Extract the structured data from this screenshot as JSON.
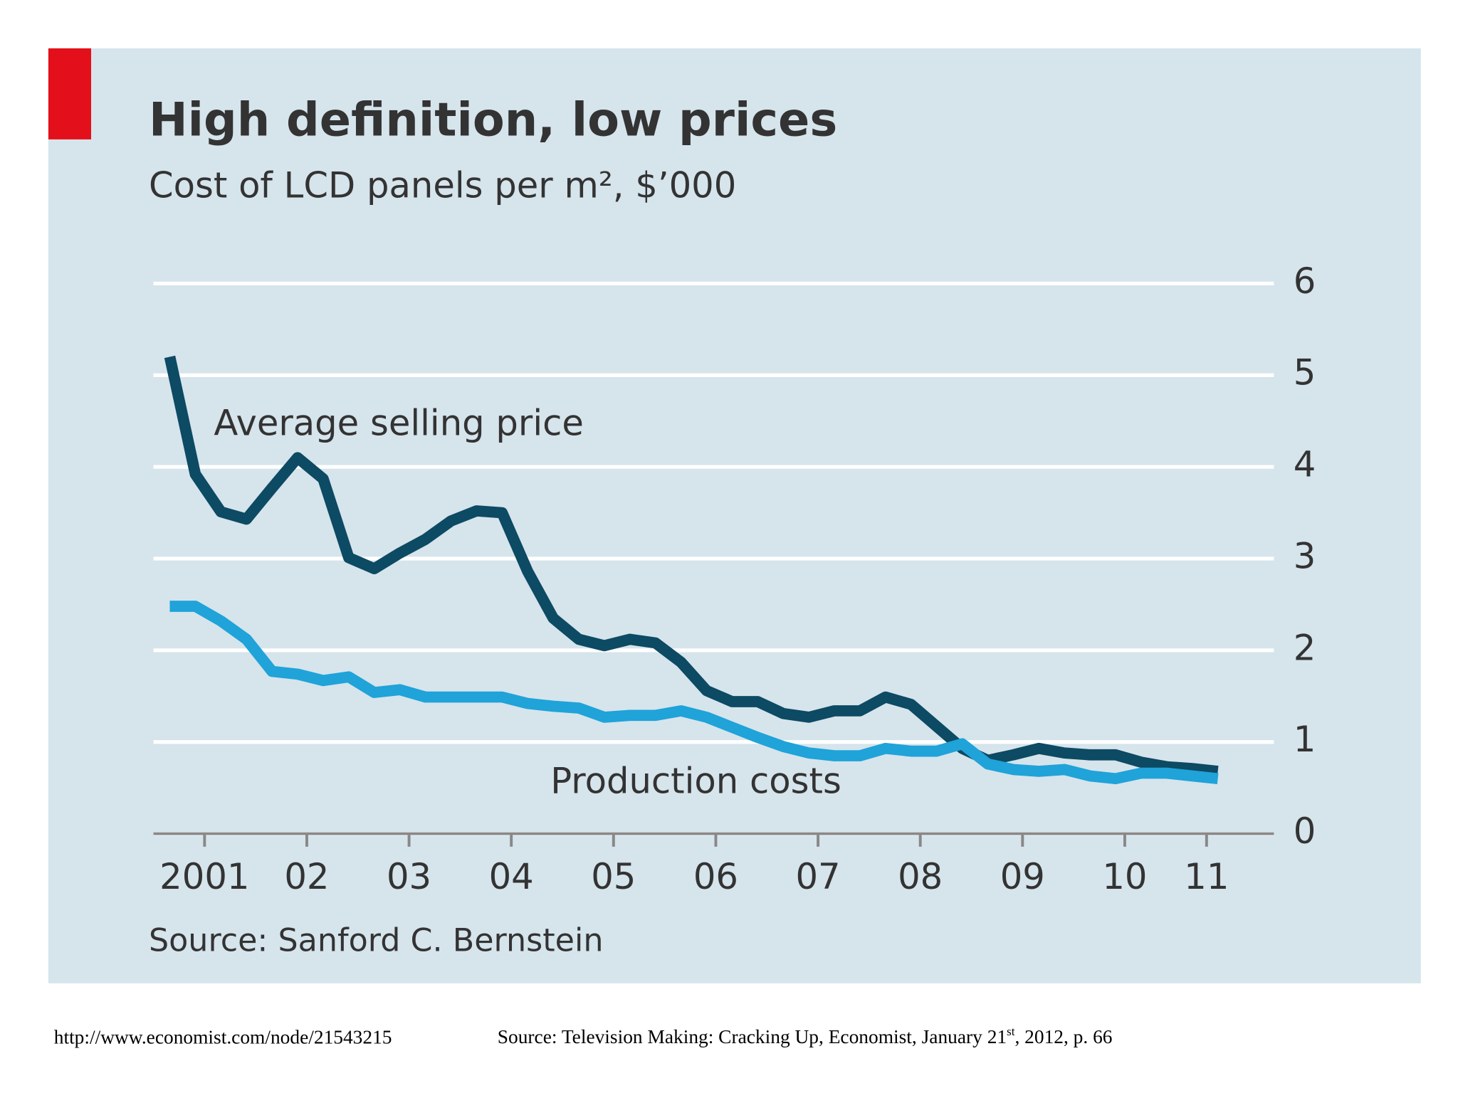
{
  "chart_data": {
    "type": "line",
    "title": "High definition, low prices",
    "subtitle": "Cost of LCD panels per m², $’000",
    "source": "Source: Sanford C. Bernstein",
    "annotations": [
      "Average selling price",
      "Production costs"
    ],
    "x": [
      2001.16,
      2001.41,
      2001.66,
      2001.91,
      2002.16,
      2002.41,
      2002.66,
      2002.91,
      2003.16,
      2003.41,
      2003.66,
      2003.91,
      2004.16,
      2004.41,
      2004.66,
      2004.91,
      2005.16,
      2005.41,
      2005.66,
      2005.91,
      2006.16,
      2006.41,
      2006.66,
      2006.91,
      2007.16,
      2007.41,
      2007.66,
      2007.91,
      2008.16,
      2008.41,
      2008.66,
      2008.91,
      2009.16,
      2009.41,
      2009.66,
      2009.91,
      2010.16,
      2010.41,
      2010.66,
      2010.91,
      2011.16,
      2011.41
    ],
    "series": [
      {
        "color": "#0d4a63",
        "values": [
          5.2,
          3.92,
          3.51,
          3.43,
          3.77,
          4.1,
          3.87,
          3.01,
          2.89,
          3.06,
          3.21,
          3.41,
          3.52,
          3.5,
          2.86,
          2.35,
          2.12,
          2.05,
          2.12,
          2.08,
          1.87,
          1.56,
          1.44,
          1.44,
          1.31,
          1.27,
          1.34,
          1.34,
          1.49,
          1.41,
          1.17,
          0.93,
          0.8,
          0.86,
          0.93,
          0.88,
          0.86,
          0.86,
          0.78,
          0.73,
          0.71,
          0.68
        ]
      },
      {
        "color": "#1fa3d9",
        "values": [
          2.48,
          2.48,
          2.32,
          2.12,
          1.77,
          1.74,
          1.67,
          1.71,
          1.54,
          1.57,
          1.49,
          1.49,
          1.49,
          1.49,
          1.42,
          1.39,
          1.37,
          1.27,
          1.29,
          1.29,
          1.34,
          1.27,
          1.16,
          1.05,
          0.95,
          0.88,
          0.85,
          0.85,
          0.93,
          0.9,
          0.9,
          0.98,
          0.76,
          0.7,
          0.68,
          0.7,
          0.63,
          0.6,
          0.66,
          0.66,
          0.63,
          0.6
        ]
      }
    ],
    "xlim": [
      2001,
      2011.64
    ],
    "xticks": [
      {
        "value": 2001.5,
        "label": "2001"
      },
      {
        "value": 2002.5,
        "label": "02"
      },
      {
        "value": 2003.5,
        "label": "03"
      },
      {
        "value": 2004.5,
        "label": "04"
      },
      {
        "value": 2005.5,
        "label": "05"
      },
      {
        "value": 2006.5,
        "label": "06"
      },
      {
        "value": 2007.5,
        "label": "07"
      },
      {
        "value": 2008.5,
        "label": "08"
      },
      {
        "value": 2009.5,
        "label": "09"
      },
      {
        "value": 2010.5,
        "label": "10"
      },
      {
        "value": 2011.3,
        "label": "11"
      }
    ],
    "ylim": [
      0,
      6
    ],
    "yticks": [
      0,
      1,
      2,
      3,
      4,
      5,
      6
    ],
    "grid": true
  },
  "footer": {
    "url": "http://www.economist.com/node/21543215",
    "source": "Source: Television Making: Cracking Up, Economist, January 21",
    "source_sup": "st",
    "source_end": ", 2012, p. 66"
  }
}
